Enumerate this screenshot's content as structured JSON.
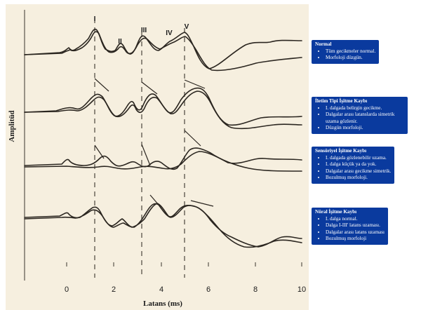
{
  "colors": {
    "background": "#f6efdf",
    "trace": "#2b2620",
    "note_box": "#0a3a9e",
    "note_text": "#ffffff"
  },
  "axes": {
    "y_title": "Amplitüd",
    "x_title": "Latans (ms)",
    "x_ticks": [
      "0",
      "2",
      "4",
      "6",
      "8",
      "10"
    ]
  },
  "waves": {
    "one": "I",
    "two": "II",
    "three": "III",
    "four": "IV",
    "five": "V"
  },
  "notes": [
    {
      "title": "Normal",
      "items": [
        "Tüm gecikmeler normal.",
        "Morfoloji düzgün."
      ]
    },
    {
      "title": "İletim Tipi İşitme Kaybı",
      "items": [
        "I. dalgada belirgin gecikme.",
        "Dalgalar arası latanslarda simetrik uzama gözlenir.",
        "Düzgün morfoloji."
      ]
    },
    {
      "title": "Sensöriyel İşitme Kaybı",
      "items": [
        "I. dalgada gözlenebilir uzama.",
        "I. dalga küçük ya da yok.",
        "Dalgalar arası gecikme simetrik.",
        "Bozulmuş morfoloji."
      ]
    },
    {
      "title": "Nöral İşitme Kaybı",
      "items": [
        "I. dalga normal.",
        "Dalga I-III' latans uzaması.",
        "Dalgalar arası latans uzaması",
        "Bozulmuş morfoloji"
      ]
    }
  ]
}
